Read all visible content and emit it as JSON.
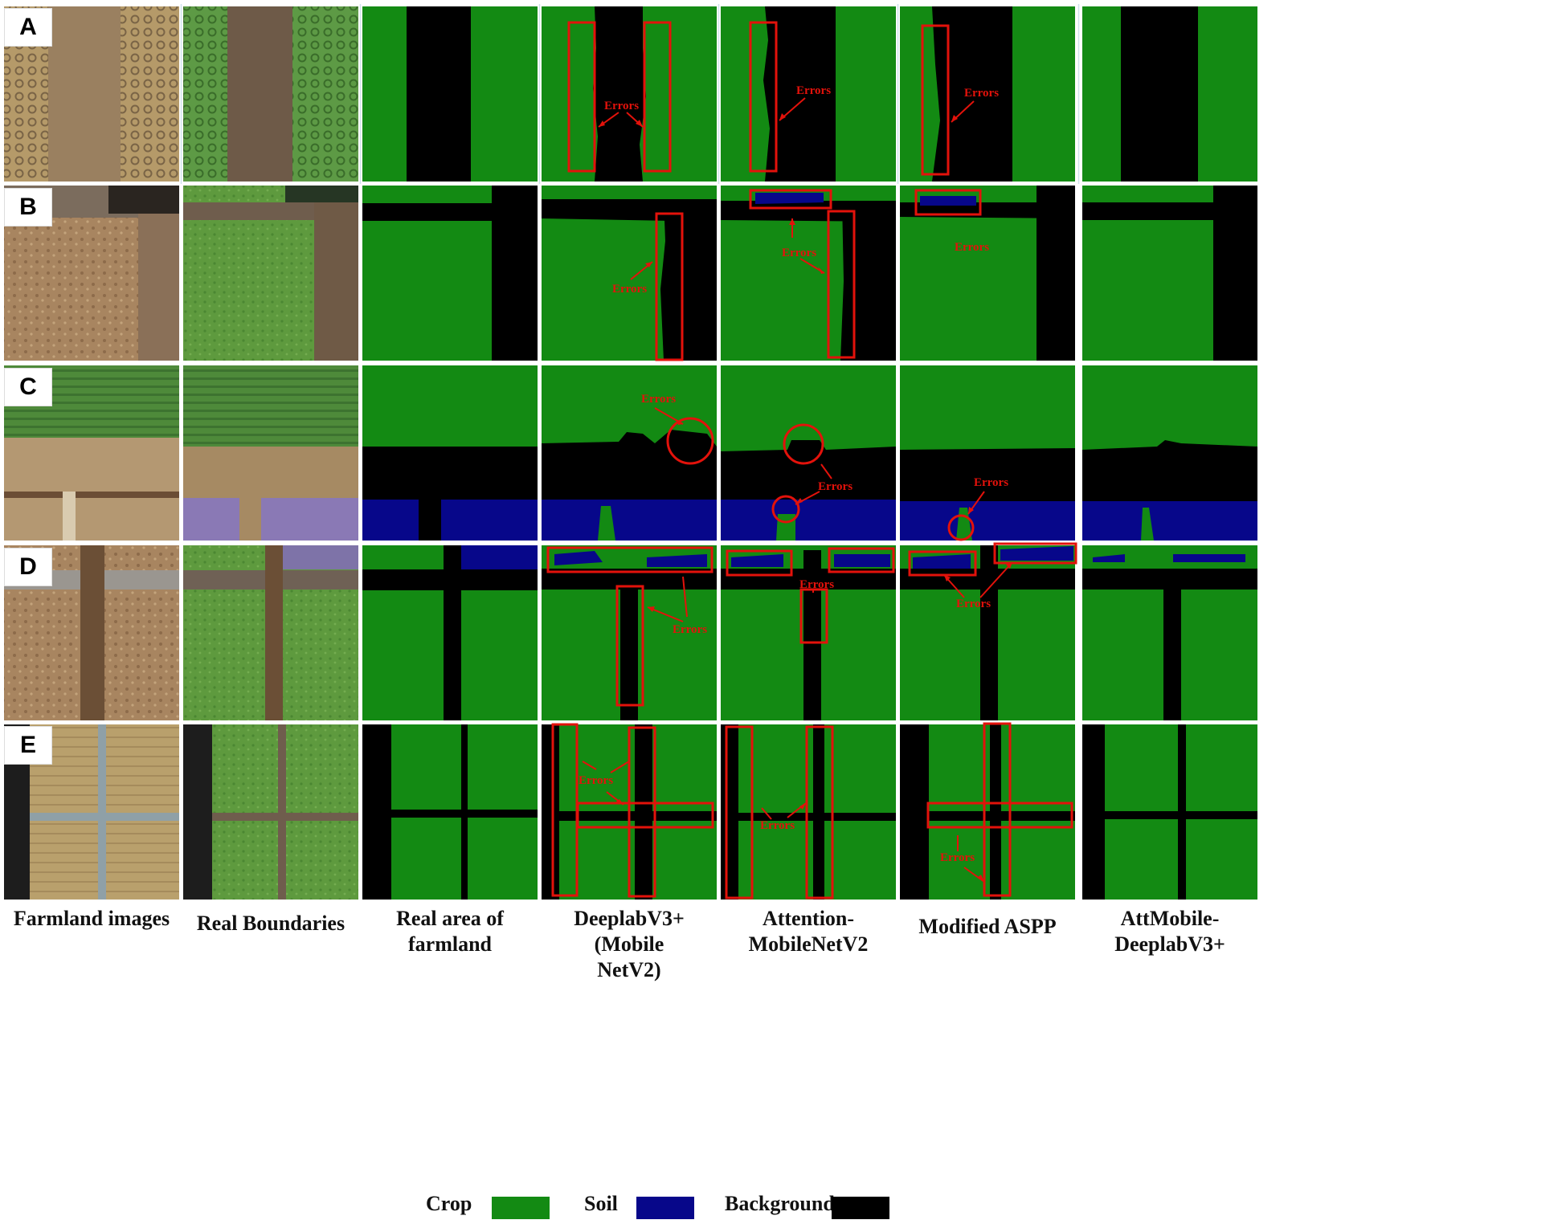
{
  "row_labels": [
    "A",
    "B",
    "C",
    "D",
    "E"
  ],
  "column_labels": [
    "Farmland images",
    "Real Boundaries",
    "Real area of farmland",
    "DeeplabV3+(Mobile NetV2)",
    "Attention-MobileNetV2",
    "Modified ASPP",
    "AttMobile-DeeplabV3+"
  ],
  "column_label_lines": [
    [
      "Farmland images"
    ],
    [
      "Real Boundaries"
    ],
    [
      "Real area of",
      "farmland"
    ],
    [
      "DeeplabV3+(Mobile",
      "NetV2)"
    ],
    [
      "Attention-",
      "MobileNetV2"
    ],
    [
      "Modified ASPP"
    ],
    [
      "AttMobile-",
      "DeeplabV3+"
    ]
  ],
  "annotation_text": "Errors",
  "legend": {
    "crop_label": "Crop",
    "soil_label": "Soil",
    "background_label": "Background"
  },
  "colors": {
    "crop": "#138a13",
    "soil": "#07078a",
    "background": "#000000",
    "error_marker": "#e3120b",
    "soil_photo": "#a8875e",
    "dry_crop_photo": "#b79d6b",
    "green_crop_photo": "#5c9a3e",
    "path_photo": "#6e5a48",
    "soil_overlay": "#8a79b5"
  }
}
